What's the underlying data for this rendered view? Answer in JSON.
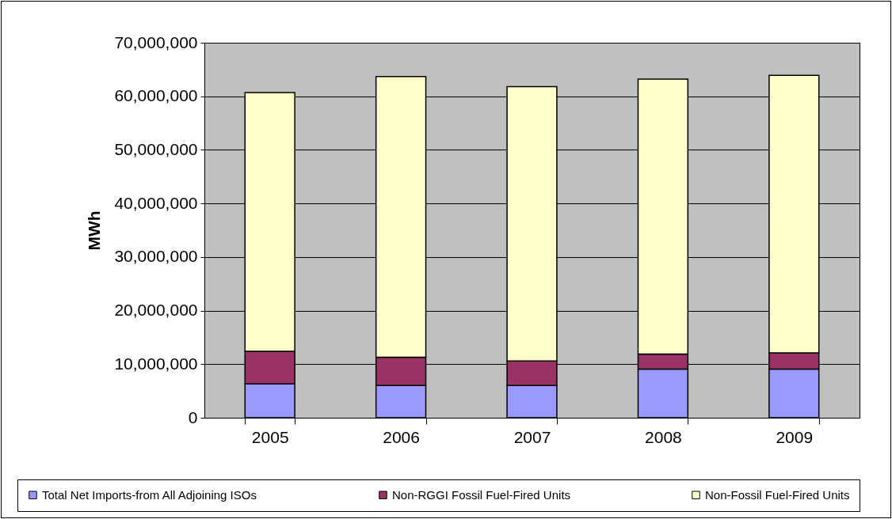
{
  "chart_data": {
    "type": "bar",
    "stacked": true,
    "ylabel": "MWh",
    "categories": [
      "2005",
      "2006",
      "2007",
      "2008",
      "2009"
    ],
    "series": [
      {
        "name": "Total Net Imports-from All Adjoining ISOs",
        "color": "#9999ff",
        "values": [
          6300000,
          6000000,
          6000000,
          9100000,
          9100000
        ]
      },
      {
        "name": "Non-RGGI Fossil Fuel-Fired Units",
        "color": "#993366",
        "values": [
          6100000,
          5300000,
          4600000,
          2800000,
          3000000
        ]
      },
      {
        "name": "Non-Fossil Fuel-Fired Units",
        "color": "#ffffcc",
        "values": [
          48300000,
          52400000,
          51200000,
          51300000,
          51800000
        ]
      }
    ],
    "ylim": [
      0,
      70000000
    ],
    "yticks": [
      0,
      {
        "value": 10000000,
        "label": "10,000,000"
      },
      {
        "value": 20000000,
        "label": "20,000,000"
      },
      {
        "value": 30000000,
        "label": "30,000,000"
      },
      {
        "value": 40000000,
        "label": "40,000,000"
      },
      {
        "value": 50000000,
        "label": "50,000,000"
      },
      {
        "value": 60000000,
        "label": "60,000,000"
      },
      {
        "value": 70000000,
        "label": "70,000,000"
      }
    ],
    "grid": "y",
    "legend": "bottom"
  }
}
